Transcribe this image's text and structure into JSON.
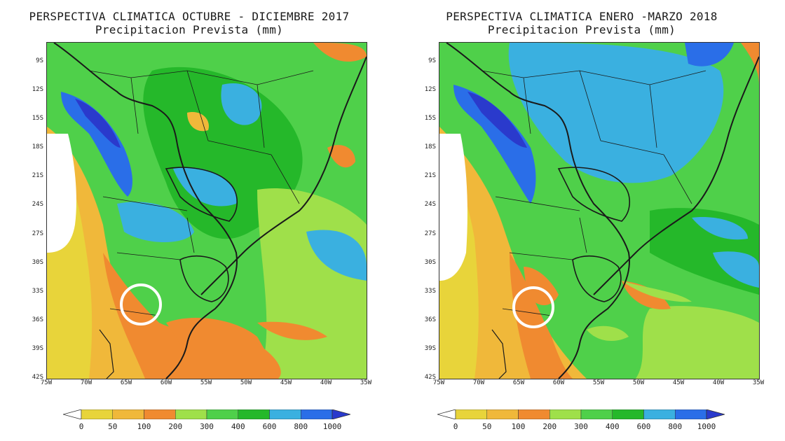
{
  "maps": [
    {
      "title_line1": "PERSPECTIVA CLIMATICA OCTUBRE - DICIEMBRE 2017",
      "title_line2": "Precipitacion Prevista (mm)"
    },
    {
      "title_line1": "PERSPECTIVA CLIMATICA ENERO -MARZO 2018",
      "title_line2": "Precipitacion Prevista (mm)"
    }
  ],
  "latitude_ticks": [
    "9S",
    "12S",
    "15S",
    "18S",
    "21S",
    "24S",
    "27S",
    "30S",
    "33S",
    "36S",
    "39S",
    "42S"
  ],
  "longitude_ticks": [
    "75W",
    "70W",
    "65W",
    "60W",
    "55W",
    "50W",
    "45W",
    "40W",
    "35W"
  ],
  "legend": {
    "labels": [
      "0",
      "50",
      "100",
      "200",
      "300",
      "400",
      "600",
      "800",
      "1000"
    ],
    "colors": [
      "#ffffff",
      "#e8d43a",
      "#f0b83a",
      "#f08a30",
      "#9fe04a",
      "#4fd04a",
      "#25b82a",
      "#3ab0e0",
      "#2a6ee8",
      "#2a3acc"
    ]
  },
  "colors": {
    "white": "#ffffff",
    "yellow": "#e8d43a",
    "light_orange": "#f0b83a",
    "orange": "#f08a30",
    "light_green": "#9fe04a",
    "green": "#4fd04a",
    "dark_green": "#25b82a",
    "cyan": "#3ab0e0",
    "blue": "#2a6ee8",
    "dark_blue": "#2a3acc",
    "border": "#1a1a1a"
  },
  "marker": "white-circle"
}
